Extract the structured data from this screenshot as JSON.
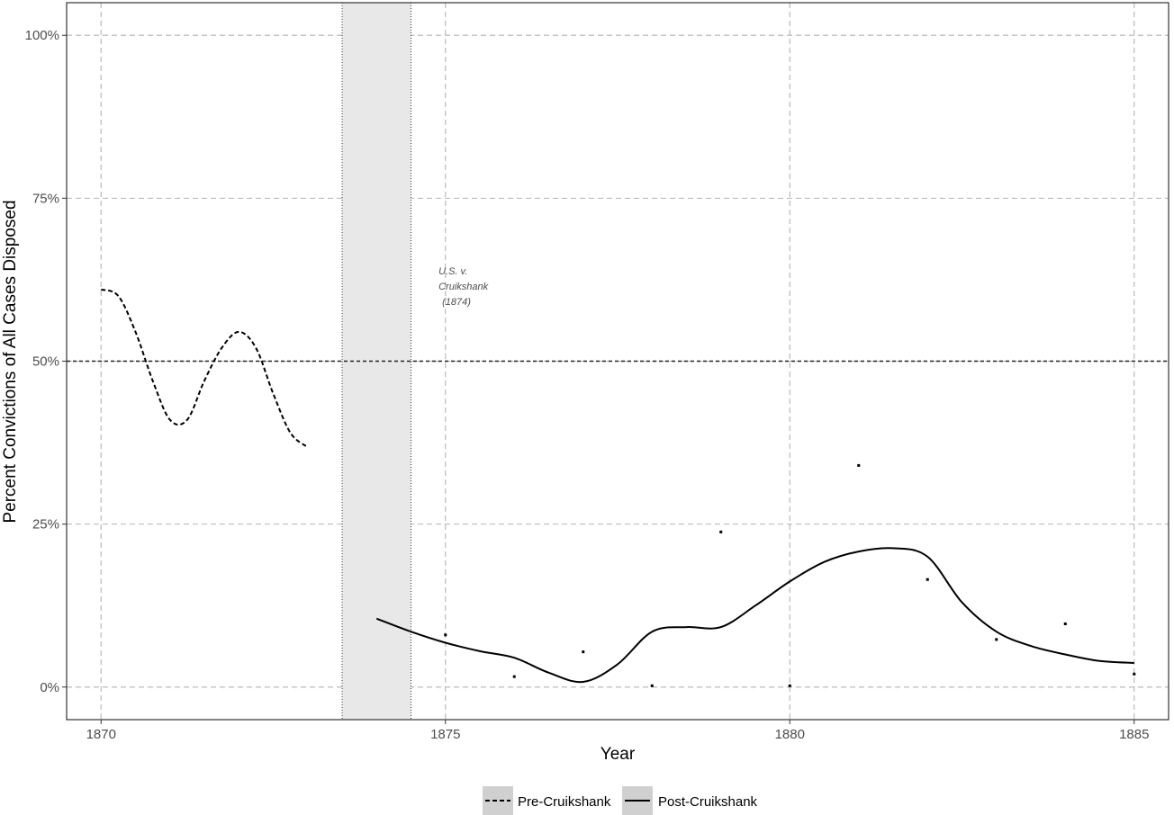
{
  "chart_data": {
    "type": "line",
    "xlabel": "Year",
    "ylabel": "Percent Convictions of All Cases Disposed",
    "xlim": [
      1869.5,
      1885.5
    ],
    "ylim": [
      -0.05,
      1.05
    ],
    "x_ticks": [
      1870,
      1875,
      1880,
      1885
    ],
    "x_tick_labels": [
      "1870",
      "1875",
      "1880",
      "1885"
    ],
    "y_ticks": [
      0,
      0.25,
      0.5,
      0.75,
      1.0
    ],
    "y_tick_labels": [
      "0%",
      "25%",
      "50%",
      "75%",
      "100%"
    ],
    "grid": true,
    "reference_line_y": 0.5,
    "shaded_band": {
      "x_start": 1873.5,
      "x_end": 1874.5,
      "color": "#e8e8e8"
    },
    "annotation": {
      "lines": [
        "U.S. v.",
        "Cruikshank",
        "(1874)"
      ],
      "x": 1874.9,
      "y": 0.61
    },
    "series": [
      {
        "name": "Pre-Cruikshank",
        "style": "dashed",
        "x": [
          1870,
          1870.25,
          1870.5,
          1870.75,
          1871,
          1871.25,
          1871.5,
          1871.75,
          1872,
          1872.25,
          1872.5,
          1872.75,
          1873
        ],
        "values": [
          0.61,
          0.6,
          0.545,
          0.47,
          0.41,
          0.41,
          0.47,
          0.52,
          0.545,
          0.52,
          0.45,
          0.39,
          0.368
        ]
      },
      {
        "name": "Post-Cruikshank",
        "style": "solid",
        "x": [
          1874,
          1874.5,
          1875,
          1875.5,
          1876,
          1876.5,
          1877,
          1877.5,
          1878,
          1878.5,
          1879,
          1879.5,
          1880,
          1880.5,
          1881,
          1881.5,
          1882,
          1882.5,
          1883,
          1883.5,
          1884,
          1884.5,
          1885
        ],
        "values": [
          0.105,
          0.085,
          0.068,
          0.055,
          0.045,
          0.022,
          0.008,
          0.035,
          0.085,
          0.092,
          0.092,
          0.125,
          0.162,
          0.192,
          0.208,
          0.213,
          0.2,
          0.13,
          0.085,
          0.063,
          0.05,
          0.04,
          0.037
        ]
      }
    ],
    "points": {
      "x": [
        1875,
        1876,
        1877,
        1878,
        1879,
        1880,
        1881,
        1882,
        1883,
        1884,
        1885
      ],
      "values": [
        0.08,
        0.016,
        0.054,
        0.002,
        0.238,
        0.002,
        0.34,
        0.165,
        0.073,
        0.097,
        0.02
      ]
    },
    "legend": {
      "position": "bottom",
      "items": [
        "Pre-Cruikshank",
        "Post-Cruikshank"
      ]
    }
  }
}
